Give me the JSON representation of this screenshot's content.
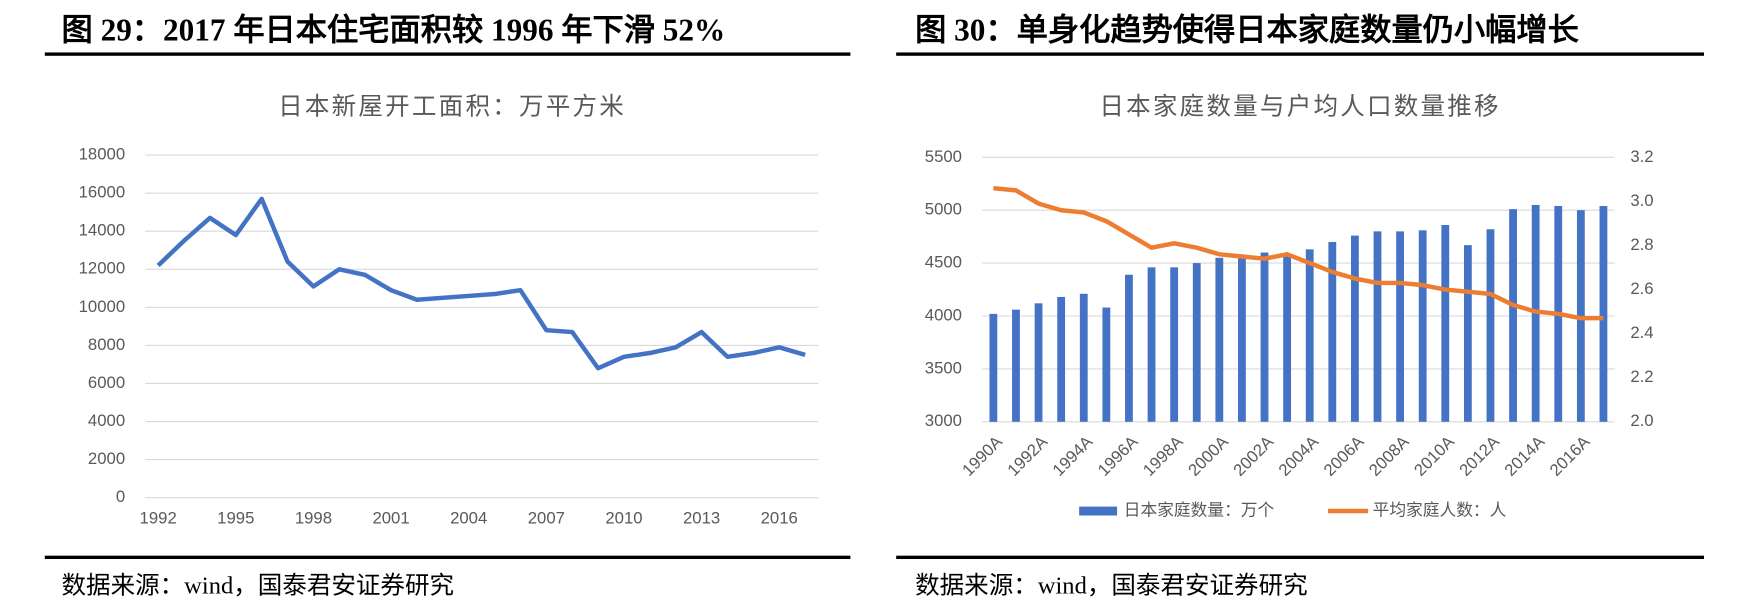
{
  "chart_data": [
    {
      "type": "line",
      "title": "图 29：2017 年日本住宅面积较 1996 年下滑 52%",
      "subtitle": "日本新屋开工面积：万平方米",
      "source": "数据来源：wind，国泰君安证券研究",
      "categories": [
        "1992",
        null,
        null,
        "1995",
        null,
        null,
        "1998",
        null,
        null,
        "2001",
        null,
        null,
        "2004",
        null,
        null,
        "2007",
        null,
        null,
        "2010",
        null,
        null,
        "2013",
        null,
        null,
        "2016",
        null
      ],
      "values": [
        12200,
        13500,
        14700,
        13800,
        15700,
        12400,
        11100,
        12000,
        11700,
        10900,
        10400,
        10500,
        10600,
        10700,
        10900,
        8800,
        8700,
        6800,
        7400,
        7600,
        7900,
        8700,
        7400,
        7600,
        7900,
        7500
      ],
      "color": "#4472c4",
      "ylim": [
        0,
        18000
      ],
      "yticks": [
        0,
        2000,
        4000,
        6000,
        8000,
        10000,
        12000,
        14000,
        16000,
        18000
      ],
      "grid": true
    },
    {
      "type": "bar",
      "title": "图 30：单身化趋势使得日本家庭数量仍小幅增长",
      "subtitle": "日本家庭数量与户均人口数量推移",
      "source": "数据来源：wind，国泰君安证券研究",
      "categories": [
        "1990A",
        null,
        "1992A",
        null,
        "1994A",
        null,
        "1996A",
        null,
        "1998A",
        null,
        "2000A",
        null,
        "2002A",
        null,
        "2004A",
        null,
        "2006A",
        null,
        "2008A",
        null,
        "2010A",
        null,
        "2012A",
        null,
        "2014A",
        null,
        "2016A",
        null
      ],
      "series": [
        {
          "name": "日本家庭数量：万个",
          "color": "#4472c4",
          "type": "bar",
          "values": [
            4020,
            4060,
            4120,
            4180,
            4210,
            4080,
            4390,
            4460,
            4460,
            4500,
            4550,
            4560,
            4600,
            4590,
            4630,
            4700,
            4760,
            4800,
            4800,
            4810,
            4860,
            4670,
            4820,
            5010,
            5050,
            5040,
            5000,
            5040
          ]
        },
        {
          "name": "平均家庭人数：人",
          "color": "#ed7d31",
          "type": "line",
          "axis": "y2",
          "values": [
            3.06,
            3.05,
            2.99,
            2.96,
            2.95,
            2.91,
            2.85,
            2.79,
            2.81,
            2.79,
            2.76,
            2.75,
            2.74,
            2.76,
            2.72,
            2.68,
            2.65,
            2.63,
            2.63,
            2.62,
            2.6,
            2.59,
            2.58,
            2.53,
            2.5,
            2.49,
            2.47,
            2.47
          ]
        }
      ],
      "ylim": [
        3000,
        5500
      ],
      "yticks": [
        3000,
        3500,
        4000,
        4500,
        5000,
        5500
      ],
      "y2lim": [
        2.0,
        3.2
      ],
      "y2ticks": [
        {
          "value": 2.0,
          "label": "2.0"
        },
        2.2,
        2.4,
        2.6,
        2.8,
        {
          "value": 3.0,
          "label": "3.0"
        },
        3.2
      ],
      "grid": true,
      "legend": "bottom"
    }
  ]
}
